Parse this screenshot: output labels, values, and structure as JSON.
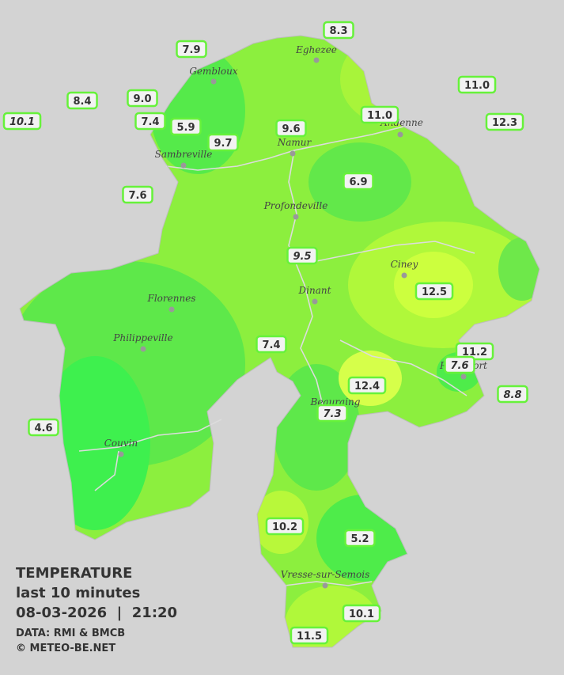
{
  "map": {
    "stations": [
      {
        "value": "8.3"
      },
      {
        "value": "7.9"
      },
      {
        "value": "11.0"
      },
      {
        "value": "8.4"
      },
      {
        "value": "9.0"
      },
      {
        "value": "10.1"
      },
      {
        "value": "7.4"
      },
      {
        "value": "5.9"
      },
      {
        "value": "9.6"
      },
      {
        "value": "11.0"
      },
      {
        "value": "12.3"
      },
      {
        "value": "9.7"
      },
      {
        "value": "6.9"
      },
      {
        "value": "7.6"
      },
      {
        "value": "9.5"
      },
      {
        "value": "12.5"
      },
      {
        "value": "7.4"
      },
      {
        "value": "11.2"
      },
      {
        "value": "7.6"
      },
      {
        "value": "12.4"
      },
      {
        "value": "8.8"
      },
      {
        "value": "7.3"
      },
      {
        "value": "4.6"
      },
      {
        "value": "10.2"
      },
      {
        "value": "5.2"
      },
      {
        "value": "10.1"
      },
      {
        "value": "11.5"
      }
    ],
    "towns": [
      {
        "name": "Eghezee"
      },
      {
        "name": "Gembloux"
      },
      {
        "name": "Andenne"
      },
      {
        "name": "Namur"
      },
      {
        "name": "Sambreville"
      },
      {
        "name": "Profondeville"
      },
      {
        "name": "Ciney"
      },
      {
        "name": "Dinant"
      },
      {
        "name": "Florennes"
      },
      {
        "name": "Philippeville"
      },
      {
        "name": "Rochefort"
      },
      {
        "name": "Beauraing"
      },
      {
        "name": "Couvin"
      },
      {
        "name": "Vresse-sur-Semois"
      }
    ]
  },
  "legend": {
    "title": "TEMPERATURE",
    "subtitle": "last 10 minutes",
    "datetime": "08-03-2026  |  21:20",
    "source": "DATA: RMI & BMCB",
    "credit": "© METEO-BE.NET"
  }
}
